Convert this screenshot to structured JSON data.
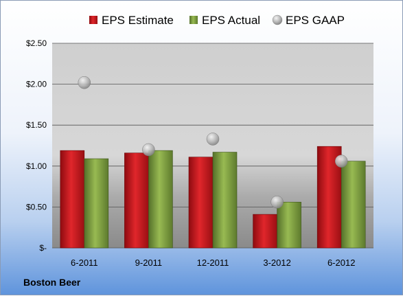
{
  "company": "Boston Beer",
  "chart_data": {
    "type": "bar",
    "categories": [
      "6-2011",
      "9-2011",
      "12-2011",
      "3-2012",
      "6-2012"
    ],
    "series": [
      {
        "name": "EPS Estimate",
        "type": "bar",
        "color": "#c0161a",
        "values": [
          1.19,
          1.16,
          1.11,
          0.41,
          1.24
        ]
      },
      {
        "name": "EPS Actual",
        "type": "bar",
        "color": "#7a9a3a",
        "values": [
          1.09,
          1.19,
          1.17,
          0.56,
          1.06
        ]
      },
      {
        "name": "EPS GAAP",
        "type": "scatter",
        "color": "#a8a8a8",
        "values": [
          2.02,
          1.2,
          1.33,
          0.56,
          1.06
        ]
      }
    ],
    "yticks": [
      "$-",
      "$0.50",
      "$1.00",
      "$1.50",
      "$2.00",
      "$2.50"
    ],
    "ylim": [
      0,
      2.5
    ],
    "legend": "top",
    "grid": true
  }
}
